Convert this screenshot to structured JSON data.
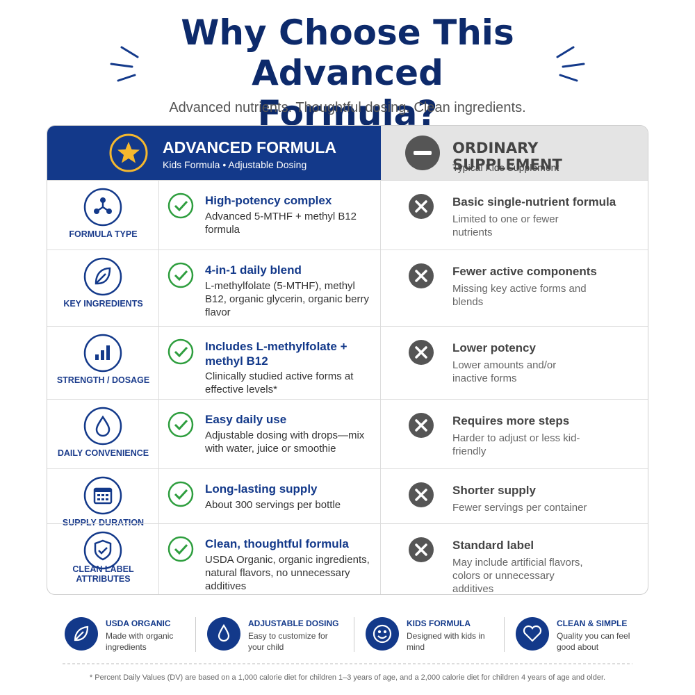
{
  "header": {
    "title": "Why Choose This Advanced Formula?",
    "subtitle": "Advanced nutrients. Thoughtful dosing. Clean ingredients."
  },
  "table": {
    "advanced": {
      "title": "ADVANCED FORMULA",
      "subtitle": "Kids Formula • Adjustable Dosing"
    },
    "ordinary": {
      "title": "ORDINARY SUPPLEMENT",
      "subtitle": "Typical Kids Supplement"
    },
    "rows": [
      {
        "label": "FORMULA TYPE",
        "adv_title": "High-potency complex",
        "adv_desc": "Advanced 5-MTHF + methyl B12 formula",
        "ord_title": "Basic single-nutrient formula",
        "ord_desc": "Limited to one or fewer nutrients"
      },
      {
        "label": "KEY INGREDIENTS",
        "adv_title": "4-in-1 daily blend",
        "adv_desc": "L-methylfolate (5-MTHF), methyl B12, organic glycerin, organic berry flavor",
        "ord_title": "Fewer active components",
        "ord_desc": "Missing key active forms and blends"
      },
      {
        "label": "STRENGTH / DOSAGE",
        "adv_title": "Includes L-methylfolate + methyl B12",
        "adv_desc": "Clinically studied active forms at effective levels*",
        "ord_title": "Lower potency",
        "ord_desc": "Lower amounts and/or inactive forms"
      },
      {
        "label": "DAILY CONVENIENCE",
        "adv_title": "Easy daily use",
        "adv_desc": "Adjustable dosing with drops—mix with water, juice or smoothie",
        "ord_title": "Requires more steps",
        "ord_desc": "Harder to adjust or less kid-friendly"
      },
      {
        "label": "SUPPLY DURATION",
        "adv_title": "Long-lasting supply",
        "adv_desc": "About 300 servings per bottle",
        "ord_title": "Shorter supply",
        "ord_desc": "Fewer servings per container"
      },
      {
        "label": "CLEAN LABEL ATTRIBUTES",
        "adv_title": "Clean, thoughtful formula",
        "adv_desc": "USDA Organic, organic ingredients, natural flavors, no unnecessary additives",
        "ord_title": "Standard label",
        "ord_desc": "May include artificial flavors, colors or unnecessary additives"
      }
    ]
  },
  "badges": [
    {
      "title": "USDA ORGANIC",
      "desc": "Made with organic ingredients"
    },
    {
      "title": "ADJUSTABLE DOSING",
      "desc": "Easy to customize for your child"
    },
    {
      "title": "KIDS FORMULA",
      "desc": "Designed with kids in mind"
    },
    {
      "title": "CLEAN & SIMPLE",
      "desc": "Quality you can feel good about"
    }
  ],
  "footnote": "* Percent Daily Values (DV) are based on a 1,000 calorie diet for children 1–3 years of age, and a 2,000 calorie diet for children 4 years of age and older."
}
